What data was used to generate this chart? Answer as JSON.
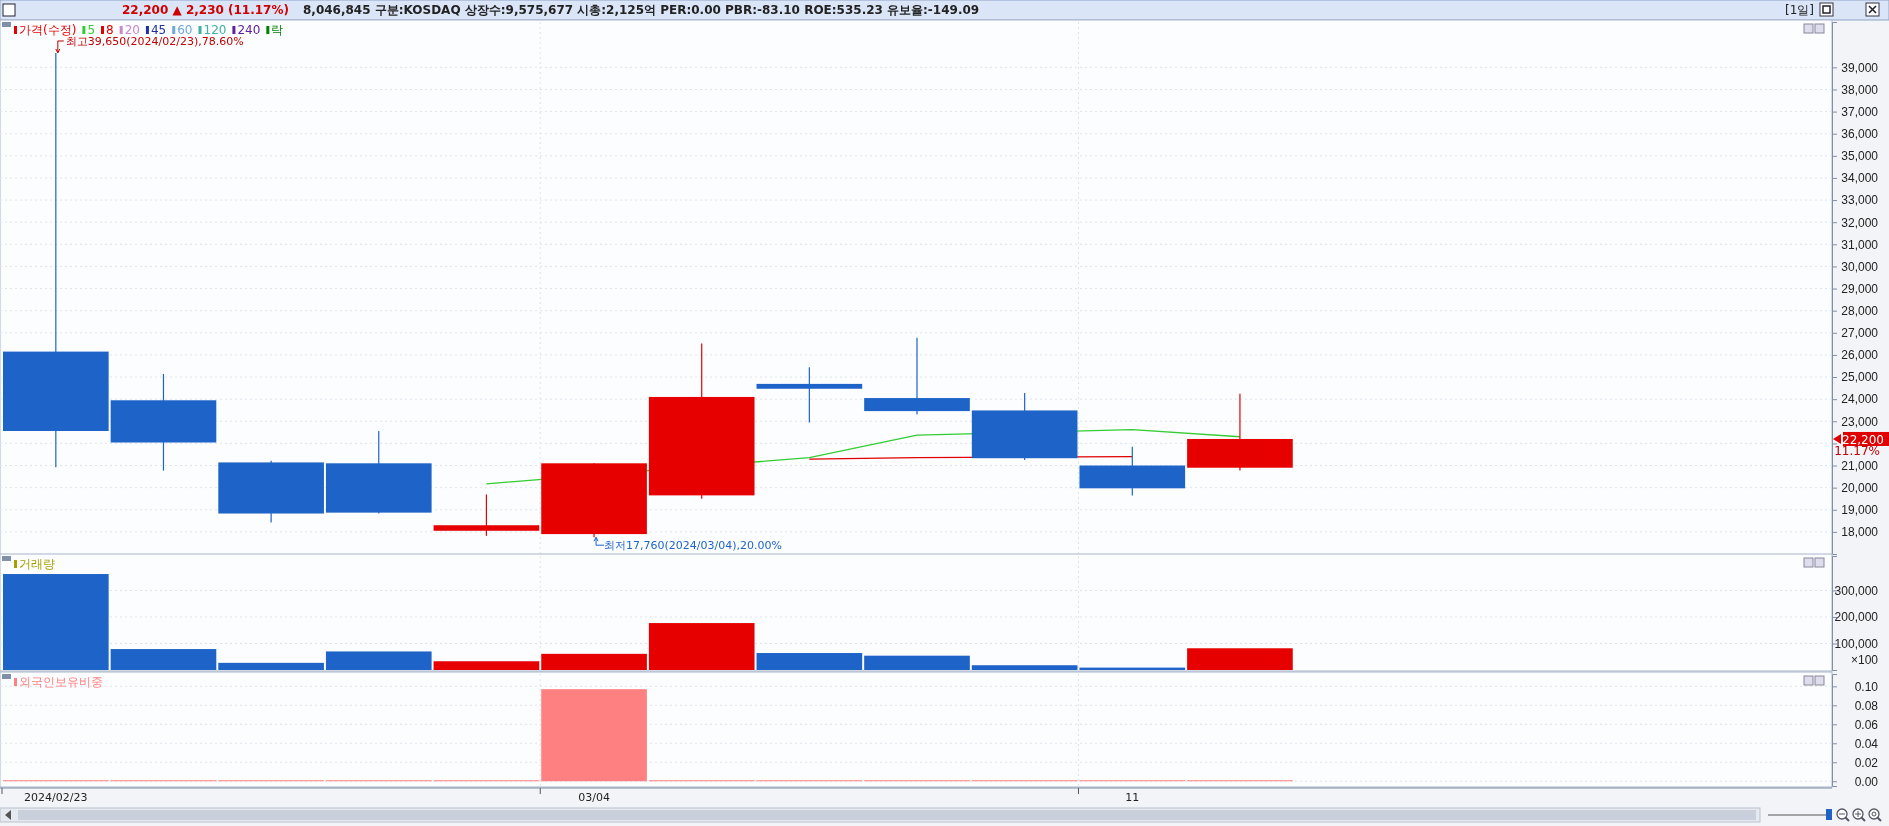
{
  "chart_data": [
    {
      "type": "candlestick",
      "title": "22,200 ▲ 2,230 (11.17%)",
      "subtitle": "8,046,845 구분:KOSDAQ 상장수:9,575,677 시총:2,125억 PER:0.00 PBR:-83.10 ROE:535.23 유보율:-149.09",
      "categories": [
        "2024/02/23",
        null,
        null,
        null,
        null,
        "03/04",
        null,
        null,
        null,
        null,
        "11",
        null,
        null,
        null,
        null,
        null,
        null
      ],
      "series": [
        {
          "name": "가격(수정)",
          "color": "#e60000",
          "colors": [
            "#1e64c8",
            "#1e64c8",
            "#1e64c8",
            "#1e64c8",
            "#e60000",
            "#e60000",
            "#e60000",
            "#1e64c8",
            "#1e64c8",
            "#1e64c8",
            "#1e64c8",
            "#e60000",
            null,
            null,
            null,
            null,
            null
          ],
          "ohlc": [
            [
              26150,
              39650,
              20920,
              22560
            ],
            [
              23950,
              25140,
              20770,
              22040
            ],
            [
              21140,
              21210,
              18420,
              18830
            ],
            [
              21100,
              22560,
              18830,
              18870
            ],
            [
              18050,
              19690,
              17820,
              18300
            ],
            [
              17900,
              21100,
              17760,
              21100
            ],
            [
              19650,
              26520,
              19500,
              24100
            ],
            [
              24690,
              25440,
              22940,
              24470
            ],
            [
              24050,
              26780,
              23310,
              23460
            ],
            [
              23490,
              24280,
              21250,
              21330
            ],
            [
              21000,
              21850,
              19650,
              19970
            ],
            [
              20900,
              24240,
              20770,
              22200
            ],
            null,
            null,
            null,
            null,
            null
          ]
        },
        {
          "name": "5",
          "type": "line",
          "color": "#33cc33",
          "values": [
            null,
            null,
            null,
            null,
            20170,
            null,
            null,
            21360,
            22370,
            null,
            22620,
            22300,
            null,
            null,
            null,
            null,
            null
          ]
        },
        {
          "name": "8",
          "type": "line",
          "color": "#e00000",
          "values": [
            null,
            null,
            null,
            null,
            null,
            null,
            null,
            21290,
            21360,
            null,
            21400,
            null,
            null,
            null,
            null,
            null,
            null
          ]
        },
        {
          "name": "20",
          "type": "line",
          "color": "#cc88cc",
          "values": [
            null,
            null,
            null,
            null,
            null,
            null,
            null,
            null,
            null,
            null,
            null,
            null,
            null,
            null,
            null,
            null,
            null
          ]
        },
        {
          "name": "45",
          "type": "line",
          "color": "#2030a0",
          "values": [
            null,
            null,
            null,
            null,
            null,
            null,
            null,
            null,
            null,
            null,
            null,
            null,
            null,
            null,
            null,
            null,
            null
          ]
        },
        {
          "name": "60",
          "type": "line",
          "color": "#6fa8dc",
          "values": [
            null,
            null,
            null,
            null,
            null,
            null,
            null,
            null,
            null,
            null,
            null,
            null,
            null,
            null,
            null,
            null,
            null
          ]
        },
        {
          "name": "120",
          "type": "line",
          "color": "#40b0a0",
          "values": [
            null,
            null,
            null,
            null,
            null,
            null,
            null,
            null,
            null,
            null,
            null,
            null,
            null,
            null,
            null,
            null,
            null
          ]
        },
        {
          "name": "240",
          "type": "line",
          "color": "#6020a0",
          "values": [
            null,
            null,
            null,
            null,
            null,
            null,
            null,
            null,
            null,
            null,
            null,
            null,
            null,
            null,
            null,
            null,
            null
          ]
        },
        {
          "name": "락",
          "type": "scatter",
          "color": "#008000",
          "values": [
            null,
            null,
            null,
            null,
            null,
            null,
            null,
            null,
            null,
            null,
            null,
            null,
            null,
            null,
            null,
            null,
            null
          ]
        }
      ],
      "ylim": [
        17000,
        41050
      ],
      "yticks": [
        {
          "value": 18000,
          "label": "18,000"
        },
        {
          "value": 19000,
          "label": "19,000"
        },
        {
          "value": 20000,
          "label": "20,000"
        },
        {
          "value": 21000,
          "label": "21,000"
        },
        {
          "value": 22000,
          "label": null
        },
        {
          "value": 23000,
          "label": "23,000"
        },
        {
          "value": 24000,
          "label": "24,000"
        },
        {
          "value": 25000,
          "label": "25,000"
        },
        {
          "value": 26000,
          "label": "26,000"
        },
        {
          "value": 27000,
          "label": "27,000"
        },
        {
          "value": 28000,
          "label": "28,000"
        },
        {
          "value": 29000,
          "label": "29,000"
        },
        {
          "value": 30000,
          "label": "30,000"
        },
        {
          "value": 31000,
          "label": "31,000"
        },
        {
          "value": 32000,
          "label": "32,000"
        },
        {
          "value": 33000,
          "label": "33,000"
        },
        {
          "value": 34000,
          "label": "34,000"
        },
        {
          "value": 35000,
          "label": "35,000"
        },
        {
          "value": 36000,
          "label": "36,000"
        },
        {
          "value": 37000,
          "label": "37,000"
        },
        {
          "value": 38000,
          "label": "38,000"
        },
        {
          "value": 39000,
          "label": "39,000"
        }
      ],
      "annotations": [
        {
          "text": "최고39,650(2024/02/23),78.60%",
          "x": "2024/02/23",
          "y": 39650
        },
        {
          "text": "최저17,760(2024/03/04),20.00%",
          "x": "03/04",
          "y": 17760
        },
        "22,200",
        "11.17%",
        "[1일]"
      ],
      "grid": true,
      "legend": "top left",
      "tick_labels": "y"
    },
    {
      "type": "bar",
      "categories": [
        "2024/02/23",
        null,
        null,
        null,
        null,
        "03/04",
        null,
        null,
        null,
        null,
        "11",
        null,
        null,
        null,
        null,
        null,
        null
      ],
      "series": [
        {
          "name": "거래량",
          "color": "#a8a000",
          "colors": [
            "#1e64c8",
            "#1e64c8",
            "#1e64c8",
            "#1e64c8",
            "#e60000",
            "#e60000",
            "#e60000",
            "#1e64c8",
            "#1e64c8",
            "#1e64c8",
            "#1e64c8",
            "#e60000",
            null,
            null,
            null,
            null,
            null
          ],
          "values": [
            362000,
            79000,
            27000,
            70000,
            33000,
            61000,
            177000,
            64000,
            54000,
            18000,
            9000,
            82000,
            null,
            null,
            null,
            null,
            null
          ]
        }
      ],
      "ylim": [
        0,
        430000
      ],
      "yticks": [
        {
          "value": 100000,
          "label": "100,000"
        },
        {
          "value": 200000,
          "label": "200,000"
        },
        {
          "value": 300000,
          "label": "300,000"
        }
      ],
      "ylabel": "×100",
      "grid": true,
      "legend": "top left",
      "tick_labels": "y"
    },
    {
      "type": "bar",
      "categories": [
        "2024/02/23",
        null,
        null,
        null,
        null,
        "03/04",
        null,
        null,
        null,
        null,
        "11",
        null,
        null,
        null,
        null,
        null,
        null
      ],
      "series": [
        {
          "name": "외국인보유비중",
          "color": "#ff8080",
          "values": [
            0,
            0,
            0,
            0,
            0,
            0.097,
            0,
            0,
            0,
            0,
            0,
            0,
            null,
            null,
            null,
            null,
            null
          ]
        }
      ],
      "ylim": [
        -0.005,
        0.113
      ],
      "yticks": [
        {
          "value": 0,
          "label": "0.00"
        },
        {
          "value": 0.02,
          "label": "0.02"
        },
        {
          "value": 0.04,
          "label": "0.04"
        },
        {
          "value": 0.06,
          "label": "0.06"
        },
        {
          "value": 0.08,
          "label": "0.08"
        },
        {
          "value": 0.1,
          "label": "0.10"
        }
      ],
      "grid": true,
      "legend": "top left"
    }
  ]
}
